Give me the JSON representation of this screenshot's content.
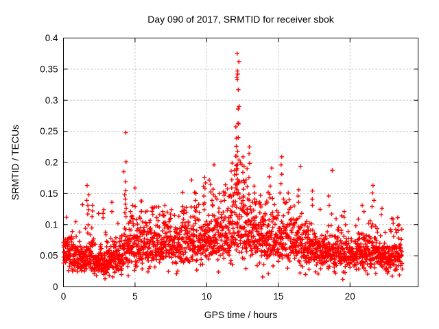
{
  "figure": {
    "background": "#ffffff"
  },
  "chart_data": {
    "type": "scatter",
    "title": "Day 090 of 2017, SRMTID for receiver sbok",
    "xlabel": "GPS time / hours",
    "ylabel": "SRMTID / TECUs",
    "xlim": [
      0,
      24.75
    ],
    "ylim": [
      0,
      0.4
    ],
    "xticks": [
      0,
      5,
      10,
      15,
      20
    ],
    "xtick_labels": [
      "0",
      "5",
      "10",
      "15",
      "20"
    ],
    "yticks": [
      0,
      0.05,
      0.1,
      0.15,
      0.2,
      0.25,
      0.3,
      0.35,
      0.4
    ],
    "ytick_labels": [
      "0",
      "0.05",
      "0.1",
      "0.15",
      "0.2",
      "0.25",
      "0.3",
      "0.35",
      "0.4"
    ],
    "grid": true,
    "legend": "none",
    "marker": {
      "shape": "plus",
      "color": "#ff0000",
      "size": 6.4,
      "stroke_width": 1.4
    },
    "grid_color": "#b3b3b3",
    "frame_color": "#000000",
    "text_color": "#000000",
    "cloud": {
      "comment": "dense 30s-sample noise band of SRMTID values; mean level vs GPS hour, lognormal spread",
      "seed": 1337,
      "x_max": 23.65,
      "x_step": 0.0105,
      "sigma": 0.3,
      "dip_fraction": 0.04,
      "min_value": 0.012,
      "max_value": 0.385,
      "profile_x": [
        0,
        0.5,
        1,
        1.5,
        2,
        2.5,
        3,
        3.5,
        4,
        4.5,
        5,
        5.5,
        6,
        6.5,
        7,
        7.5,
        8,
        8.5,
        9,
        9.5,
        10,
        10.5,
        11,
        11.5,
        12,
        12.3,
        12.7,
        13,
        13.5,
        14,
        14.5,
        15,
        15.5,
        16,
        16.5,
        17,
        17.5,
        18,
        18.5,
        19,
        19.5,
        20,
        20.5,
        21,
        21.5,
        22,
        22.5,
        23,
        23.65
      ],
      "profile_mean": [
        0.058,
        0.052,
        0.048,
        0.052,
        0.047,
        0.042,
        0.04,
        0.044,
        0.052,
        0.062,
        0.066,
        0.068,
        0.066,
        0.069,
        0.074,
        0.073,
        0.071,
        0.074,
        0.077,
        0.08,
        0.079,
        0.082,
        0.085,
        0.092,
        0.105,
        0.108,
        0.098,
        0.093,
        0.086,
        0.079,
        0.081,
        0.083,
        0.078,
        0.075,
        0.071,
        0.067,
        0.062,
        0.06,
        0.059,
        0.055,
        0.054,
        0.052,
        0.054,
        0.056,
        0.058,
        0.055,
        0.05,
        0.052,
        0.055
      ]
    },
    "spike_clusters": [
      {
        "x": 1.72,
        "values": [
          0.163,
          0.148,
          0.139,
          0.131,
          0.124,
          0.117
        ]
      },
      {
        "x": 1.95,
        "values": [
          0.131,
          0.122,
          0.113
        ]
      },
      {
        "x": 2.45,
        "values": [
          0.118
        ]
      },
      {
        "x": 2.75,
        "values": [
          0.124,
          0.111
        ]
      },
      {
        "x": 3.3,
        "values": [
          0.136,
          0.121
        ]
      },
      {
        "x": 4.3,
        "values": [
          0.248,
          0.201,
          0.185,
          0.169,
          0.155,
          0.148,
          0.141,
          0.133,
          0.126,
          0.119,
          0.113
        ]
      },
      {
        "x": 4.75,
        "values": [
          0.131,
          0.121,
          0.114
        ]
      },
      {
        "x": 5.4,
        "values": [
          0.121,
          0.112
        ]
      },
      {
        "x": 6.3,
        "values": [
          0.126,
          0.116
        ]
      },
      {
        "x": 7.0,
        "values": [
          0.131,
          0.121,
          0.114
        ]
      },
      {
        "x": 7.55,
        "values": [
          0.124,
          0.117
        ]
      },
      {
        "x": 8.3,
        "values": [
          0.129,
          0.121
        ]
      },
      {
        "x": 9.2,
        "values": [
          0.152,
          0.139,
          0.128
        ]
      },
      {
        "x": 9.85,
        "values": [
          0.176,
          0.167,
          0.158,
          0.146,
          0.135
        ]
      },
      {
        "x": 10.45,
        "values": [
          0.157,
          0.148,
          0.139,
          0.13
        ]
      },
      {
        "x": 10.8,
        "values": [
          0.15,
          0.141
        ]
      },
      {
        "x": 11.3,
        "values": [
          0.164,
          0.151,
          0.139
        ]
      },
      {
        "x": 11.7,
        "values": [
          0.199,
          0.186,
          0.172,
          0.159,
          0.148
        ]
      },
      {
        "x": 12.0,
        "values": [
          0.239,
          0.226,
          0.21,
          0.195,
          0.18,
          0.165,
          0.152
        ]
      },
      {
        "x": 12.18,
        "values": [
          0.375,
          0.362,
          0.347,
          0.342,
          0.337,
          0.333,
          0.317,
          0.29,
          0.286,
          0.263,
          0.262,
          0.24,
          0.218,
          0.21,
          0.204,
          0.197,
          0.19,
          0.181,
          0.173,
          0.164,
          0.156,
          0.149
        ]
      },
      {
        "x": 12.5,
        "values": [
          0.209,
          0.196,
          0.184,
          0.171,
          0.157,
          0.146
        ]
      },
      {
        "x": 12.9,
        "values": [
          0.225,
          0.214,
          0.19,
          0.176,
          0.161,
          0.149
        ]
      },
      {
        "x": 13.3,
        "values": [
          0.162,
          0.151,
          0.141
        ]
      },
      {
        "x": 13.7,
        "values": [
          0.147,
          0.136
        ]
      },
      {
        "x": 14.45,
        "values": [
          0.191,
          0.177,
          0.162,
          0.149
        ]
      },
      {
        "x": 15.2,
        "values": [
          0.209,
          0.196,
          0.181,
          0.166,
          0.151
        ]
      },
      {
        "x": 15.7,
        "values": [
          0.151,
          0.14
        ]
      },
      {
        "x": 16.4,
        "values": [
          0.156,
          0.146,
          0.136
        ]
      },
      {
        "x": 17.3,
        "values": [
          0.154,
          0.141,
          0.131
        ]
      },
      {
        "x": 18.6,
        "values": [
          0.146,
          0.131
        ]
      },
      {
        "x": 19.6,
        "values": [
          0.121,
          0.112
        ]
      },
      {
        "x": 20.9,
        "values": [
          0.131,
          0.121
        ]
      },
      {
        "x": 21.6,
        "values": [
          0.163,
          0.151,
          0.139,
          0.129
        ]
      },
      {
        "x": 22.25,
        "values": [
          0.126,
          0.116
        ]
      },
      {
        "x": 23.0,
        "values": [
          0.11,
          0.102
        ]
      }
    ],
    "low_points": [
      [
        2.3,
        0.018
      ],
      [
        2.9,
        0.013
      ],
      [
        3.45,
        0.016
      ],
      [
        4.05,
        0.02
      ],
      [
        5.9,
        0.024
      ],
      [
        9.3,
        0.027
      ],
      [
        13.9,
        0.016
      ],
      [
        14.3,
        0.021
      ],
      [
        16.9,
        0.02
      ],
      [
        17.6,
        0.024
      ],
      [
        19.0,
        0.022
      ],
      [
        19.65,
        0.023
      ],
      [
        21.1,
        0.026
      ],
      [
        22.6,
        0.022
      ],
      [
        23.2,
        0.028
      ]
    ]
  }
}
